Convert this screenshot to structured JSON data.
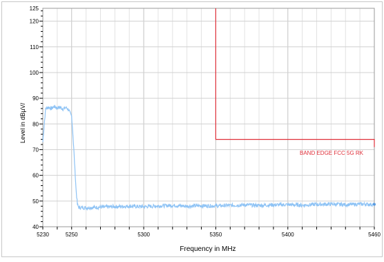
{
  "chart_data": {
    "type": "line",
    "xlabel": "Frequency in MHz",
    "ylabel": "Level in dBµV/",
    "xlim": [
      5230,
      5460
    ],
    "ylim": [
      40,
      125
    ],
    "x_ticks": [
      5230,
      5250,
      5300,
      5350,
      5400,
      5460
    ],
    "y_ticks": [
      40,
      50,
      60,
      70,
      80,
      90,
      100,
      110,
      120,
      125
    ],
    "grid": true,
    "series": [
      {
        "role": "measurement",
        "color": "#8ec3f5",
        "x": [
          5230,
          5231,
          5232,
          5234,
          5236,
          5238,
          5240,
          5242,
          5244,
          5246,
          5247,
          5248,
          5249,
          5250,
          5251,
          5252,
          5253,
          5254,
          5255,
          5260,
          5270,
          5280,
          5290,
          5300,
          5310,
          5320,
          5330,
          5340,
          5350,
          5360,
          5370,
          5380,
          5390,
          5400,
          5410,
          5420,
          5430,
          5440,
          5450,
          5460
        ],
        "y": [
          73,
          80,
          86,
          86.5,
          86,
          86.8,
          86.2,
          86.5,
          85.8,
          86.4,
          86,
          85.5,
          84,
          83,
          75,
          65,
          55,
          48.5,
          47.5,
          47.4,
          47.6,
          47.8,
          48,
          47.8,
          48.1,
          48.3,
          48,
          48.2,
          48.1,
          48.3,
          48.5,
          48.3,
          48.5,
          48.6,
          48.4,
          48.7,
          48.8,
          48.6,
          48.8,
          48.7
        ]
      },
      {
        "role": "limit",
        "label": "BAND EDGE  FCC 5G RK",
        "color": "#e0303a",
        "x": [
          5350,
          5350,
          5460,
          5460
        ],
        "y": [
          125,
          74,
          74,
          71
        ]
      }
    ]
  }
}
